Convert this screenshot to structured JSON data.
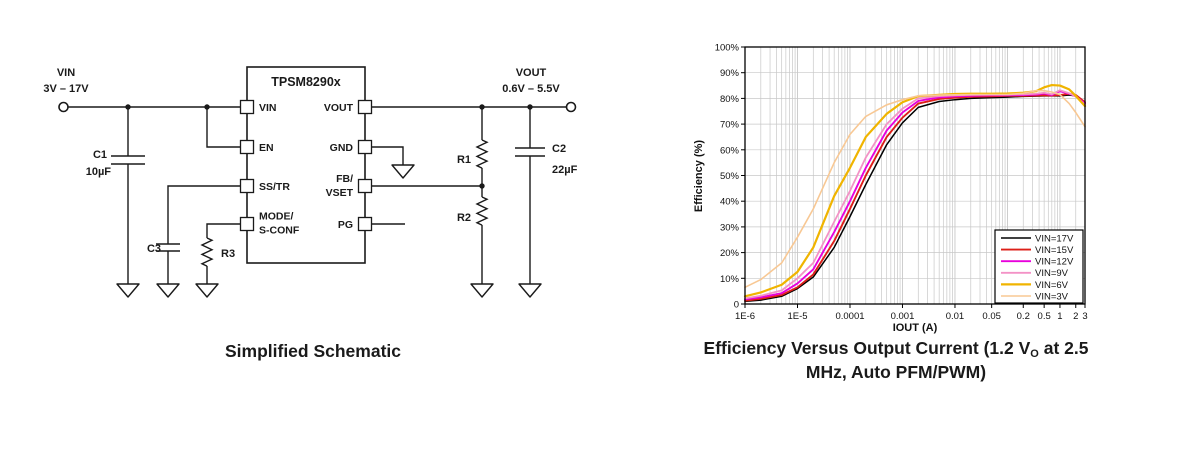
{
  "schematic": {
    "caption": "Simplified Schematic",
    "input": {
      "name": "VIN",
      "range": "3V – 17V"
    },
    "output": {
      "name": "VOUT",
      "range": "0.6V – 5.5V"
    },
    "ic": {
      "title": "TPSM8290x",
      "pins": {
        "vin": "VIN",
        "en": "EN",
        "sstr": "SS/TR",
        "mode_line1": "MODE/",
        "mode_line2": "S-CONF",
        "vout": "VOUT",
        "gnd": "GND",
        "fb_line1": "FB/",
        "fb_line2": "VSET",
        "pg": "PG"
      }
    },
    "components": {
      "c1": "C1",
      "c1_value": "10µF",
      "c2": "C2",
      "c2_value": "22µF",
      "c3": "C3",
      "r1": "R1",
      "r2": "R2",
      "r3": "R3"
    }
  },
  "chart_caption": {
    "line1_pre": "Efficiency Versus Output Current (1.2 V",
    "line1_sub": "O",
    "line1_post": " at 2.5",
    "line2": "MHz, Auto PFM/PWM)"
  },
  "chart_data": {
    "type": "line",
    "title": "Efficiency Versus Output Current (1.2 VO at 2.5 MHz, Auto PFM/PWM)",
    "xlabel": "IOUT (A)",
    "ylabel": "Efficiency (%)",
    "xscale": "log",
    "xlim": [
      1e-06,
      3
    ],
    "ylim": [
      0,
      100
    ],
    "grid": true,
    "grid_color": "#c8c8c8",
    "legend_position": "bottom-right",
    "x_ticks": [
      {
        "label": "1E-6",
        "value": 1e-06
      },
      {
        "label": "1E-5",
        "value": 1e-05
      },
      {
        "label": "0.0001",
        "value": 0.0001
      },
      {
        "label": "0.001",
        "value": 0.001
      },
      {
        "label": "0.01",
        "value": 0.01
      },
      {
        "label": "0.05",
        "value": 0.05
      },
      {
        "label": "0.2",
        "value": 0.2
      },
      {
        "label": "0.5",
        "value": 0.5
      },
      {
        "label": "1",
        "value": 1
      },
      {
        "label": "2",
        "value": 2
      },
      {
        "label": "3",
        "value": 3
      }
    ],
    "y_ticks": [
      {
        "label": "0",
        "value": 0
      },
      {
        "label": "10%",
        "value": 10
      },
      {
        "label": "20%",
        "value": 20
      },
      {
        "label": "30%",
        "value": 30
      },
      {
        "label": "40%",
        "value": 40
      },
      {
        "label": "50%",
        "value": 50
      },
      {
        "label": "60%",
        "value": 60
      },
      {
        "label": "70%",
        "value": 70
      },
      {
        "label": "80%",
        "value": 80
      },
      {
        "label": "90%",
        "value": 90
      },
      {
        "label": "100%",
        "value": 100
      }
    ],
    "x": [
      1e-06,
      2e-06,
      5e-06,
      1e-05,
      2e-05,
      5e-05,
      0.0001,
      0.0002,
      0.0005,
      0.001,
      0.002,
      0.005,
      0.01,
      0.02,
      0.05,
      0.1,
      0.2,
      0.35,
      0.5,
      0.7,
      1,
      1.5,
      2,
      3
    ],
    "series": [
      {
        "name": "VIN=17V",
        "color": "#000000",
        "width": 1.5,
        "values": [
          1,
          1.5,
          3,
          6,
          10.5,
          22,
          34,
          46.5,
          62,
          70.5,
          76.5,
          78.8,
          79.5,
          80,
          80.3,
          80.5,
          80.8,
          80.9,
          81,
          81,
          81,
          81.3,
          81,
          78
        ]
      },
      {
        "name": "VIN=15V",
        "color": "#dd1f18",
        "width": 1.9,
        "values": [
          1.3,
          2,
          3.5,
          6.5,
          11.5,
          24.5,
          37,
          50,
          65,
          72.5,
          78,
          79.8,
          80.3,
          80.6,
          80.8,
          81,
          81,
          81.1,
          81.2,
          81.1,
          81.3,
          81.8,
          81.3,
          78.5
        ]
      },
      {
        "name": "VIN=12V",
        "color": "#e800dc",
        "width": 1.9,
        "values": [
          1.8,
          2.6,
          4.2,
          8,
          13.5,
          28,
          40,
          53,
          67.5,
          74.5,
          79,
          80.4,
          80.8,
          81,
          81.2,
          81.2,
          81.3,
          81.5,
          81.9,
          81.3,
          82.8,
          81.8,
          80.8,
          78
        ]
      },
      {
        "name": "VIN=9V",
        "color": "#f392c6",
        "width": 1.8,
        "values": [
          2.2,
          3.2,
          5.3,
          10,
          16,
          32,
          44,
          57,
          70,
          76,
          80,
          80.9,
          81.2,
          81.4,
          81.5,
          81.5,
          81.6,
          81.8,
          82.2,
          81.6,
          83.2,
          82,
          80.8,
          77.5
        ]
      },
      {
        "name": "VIN=6V",
        "color": "#f0b400",
        "width": 2.2,
        "values": [
          3,
          4.5,
          7.5,
          12.5,
          22,
          42,
          53,
          65,
          74,
          78.5,
          80.9,
          81.4,
          81.7,
          81.8,
          81.8,
          81.9,
          82.2,
          82.8,
          84.3,
          85.2,
          85,
          83.5,
          81,
          77
        ]
      },
      {
        "name": "VIN=3V",
        "color": "#f8c894",
        "width": 1.6,
        "values": [
          6.5,
          9.5,
          16,
          26,
          37,
          55,
          66,
          73,
          77.5,
          79.5,
          81,
          81.3,
          81.4,
          81.5,
          81.5,
          81.5,
          82,
          83,
          83,
          82.5,
          81.5,
          78,
          74.5,
          69
        ]
      }
    ]
  }
}
